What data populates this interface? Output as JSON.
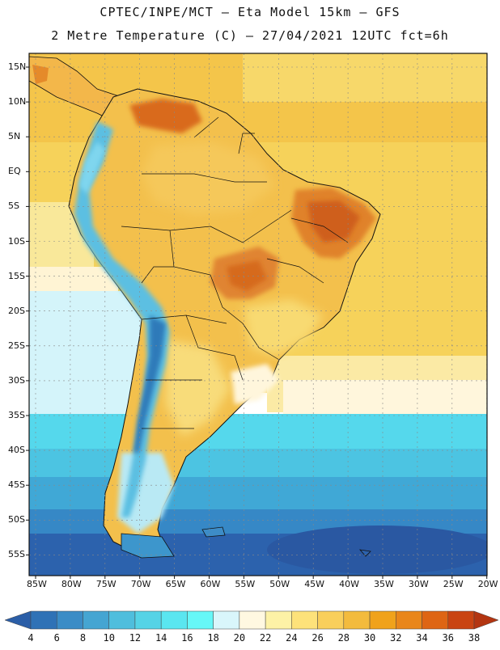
{
  "title_line1": "CPTEC/INPE/MCT –   Eta Model 15km – GFS",
  "title_line2": "2 Metre Temperature (C) – 27/04/2021 12UTC fct=6h",
  "lat_labels": [
    "15N",
    "10N",
    "5N",
    "EQ",
    "5S",
    "10S",
    "15S",
    "20S",
    "25S",
    "30S",
    "35S",
    "40S",
    "45S",
    "50S",
    "55S"
  ],
  "lon_labels": [
    "85W",
    "80W",
    "75W",
    "70W",
    "65W",
    "60W",
    "55W",
    "50W",
    "45W",
    "40W",
    "35W",
    "30W",
    "25W",
    "20W"
  ],
  "colorbar": {
    "labels": [
      "4",
      "6",
      "8",
      "10",
      "12",
      "14",
      "16",
      "18",
      "20",
      "22",
      "24",
      "26",
      "28",
      "30",
      "32",
      "34",
      "36",
      "38"
    ],
    "colors": [
      "#2b5ea7",
      "#2f72b6",
      "#3b8cc6",
      "#45a5d2",
      "#4fbedd",
      "#55d3e6",
      "#5ae6f0",
      "#66f7f7",
      "#d9f6fb",
      "#fff8e1",
      "#fdf2a6",
      "#fde27a",
      "#f9cf5b",
      "#f3bb3d",
      "#f0a21b",
      "#e9861a",
      "#de6514",
      "#c94412",
      "#b33511"
    ]
  },
  "colors": {
    "ocean_cold": "#2b5ea7",
    "ocean_mid": "#3f9ccd",
    "ocean_cyan": "#4fd2ea",
    "ocean_warm": "#f6cf52",
    "land_warm": "#f0b030",
    "land_hot": "#d96518",
    "andes": "#5ab7de"
  }
}
